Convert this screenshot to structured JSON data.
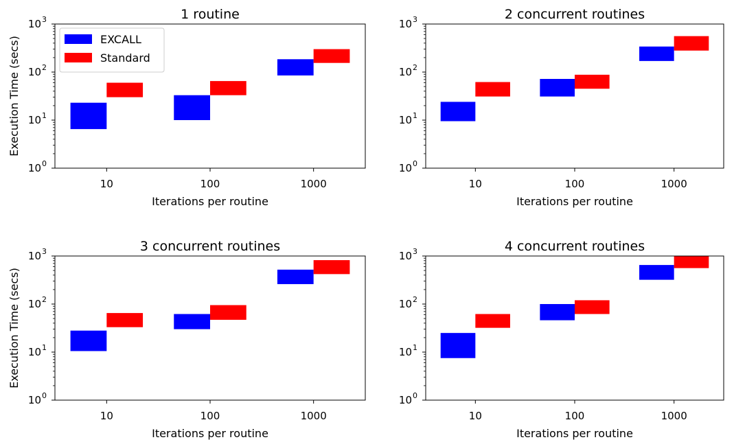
{
  "colors": {
    "EXCALL": "#0000ff",
    "Standard": "#ff0000"
  },
  "chart_data": [
    {
      "type": "bar",
      "title": "1 routine",
      "xlabel": "Iterations per routine",
      "ylabel": "Execution Time (secs)",
      "yscale": "log",
      "ylim": [
        1,
        1000
      ],
      "y_tick_labels": [
        {
          "base": "10",
          "exp": "0"
        },
        {
          "base": "10",
          "exp": "1"
        },
        {
          "base": "10",
          "exp": "2"
        },
        {
          "base": "10",
          "exp": "3"
        }
      ],
      "categories": [
        "10",
        "100",
        "1000"
      ],
      "legend": {
        "location": "upper-left",
        "entries": [
          "EXCALL",
          "Standard"
        ]
      },
      "series": [
        {
          "name": "EXCALL",
          "ranges": [
            [
              6.5,
              23
            ],
            [
              10,
              33
            ],
            [
              85,
              185
            ]
          ]
        },
        {
          "name": "Standard",
          "ranges": [
            [
              30,
              60
            ],
            [
              33,
              65
            ],
            [
              155,
              300
            ]
          ]
        }
      ]
    },
    {
      "type": "bar",
      "title": "2 concurrent routines",
      "xlabel": "Iterations per routine",
      "ylabel": "",
      "yscale": "log",
      "ylim": [
        1,
        1000
      ],
      "y_tick_labels": [
        {
          "base": "10",
          "exp": "0"
        },
        {
          "base": "10",
          "exp": "1"
        },
        {
          "base": "10",
          "exp": "2"
        },
        {
          "base": "10",
          "exp": "3"
        }
      ],
      "categories": [
        "10",
        "100",
        "1000"
      ],
      "series": [
        {
          "name": "EXCALL",
          "ranges": [
            [
              9.5,
              24
            ],
            [
              31,
              72
            ],
            [
              170,
              340
            ]
          ]
        },
        {
          "name": "Standard",
          "ranges": [
            [
              31,
              62
            ],
            [
              45,
              88
            ],
            [
              280,
              560
            ]
          ]
        }
      ]
    },
    {
      "type": "bar",
      "title": "3 concurrent routines",
      "xlabel": "Iterations per routine",
      "ylabel": "Execution Time (secs)",
      "yscale": "log",
      "ylim": [
        1,
        1000
      ],
      "y_tick_labels": [
        {
          "base": "10",
          "exp": "0"
        },
        {
          "base": "10",
          "exp": "1"
        },
        {
          "base": "10",
          "exp": "2"
        },
        {
          "base": "10",
          "exp": "3"
        }
      ],
      "categories": [
        "10",
        "100",
        "1000"
      ],
      "series": [
        {
          "name": "EXCALL",
          "ranges": [
            [
              10.5,
              28
            ],
            [
              30,
              62
            ],
            [
              260,
              520
            ]
          ]
        },
        {
          "name": "Standard",
          "ranges": [
            [
              33,
              65
            ],
            [
              47,
              95
            ],
            [
              420,
              820
            ]
          ]
        }
      ]
    },
    {
      "type": "bar",
      "title": "4 concurrent routines",
      "xlabel": "Iterations per routine",
      "ylabel": "",
      "yscale": "log",
      "ylim": [
        1,
        1000
      ],
      "y_tick_labels": [
        {
          "base": "10",
          "exp": "0"
        },
        {
          "base": "10",
          "exp": "1"
        },
        {
          "base": "10",
          "exp": "2"
        },
        {
          "base": "10",
          "exp": "3"
        }
      ],
      "categories": [
        "10",
        "100",
        "1000"
      ],
      "series": [
        {
          "name": "EXCALL",
          "ranges": [
            [
              7.5,
              25
            ],
            [
              46,
              100
            ],
            [
              320,
              650
            ]
          ]
        },
        {
          "name": "Standard",
          "ranges": [
            [
              32,
              62
            ],
            [
              62,
              120
            ],
            [
              560,
              1000
            ]
          ]
        }
      ]
    }
  ]
}
